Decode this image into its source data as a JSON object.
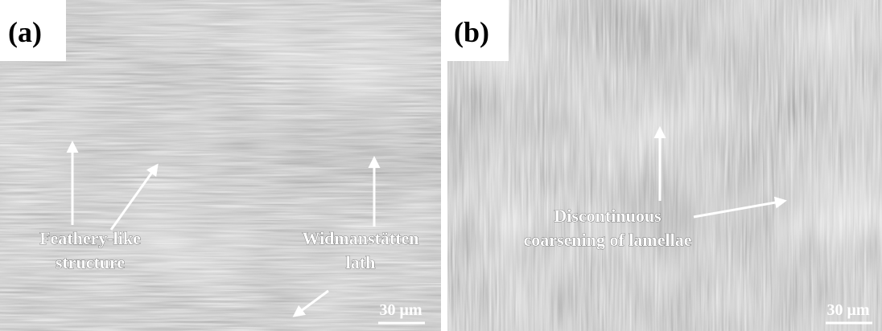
{
  "panels": [
    {
      "label": "(a)",
      "annotations": [
        {
          "lines": [
            "Feathery-like",
            "structure"
          ]
        },
        {
          "lines": [
            "Widmanstätten",
            "lath"
          ]
        }
      ],
      "scale_bar": "30 μm"
    },
    {
      "label": "(b)",
      "annotations": [
        {
          "lines": [
            "Discontinuous",
            "coarsening of lamellae"
          ]
        }
      ],
      "scale_bar": "30 μm"
    }
  ]
}
